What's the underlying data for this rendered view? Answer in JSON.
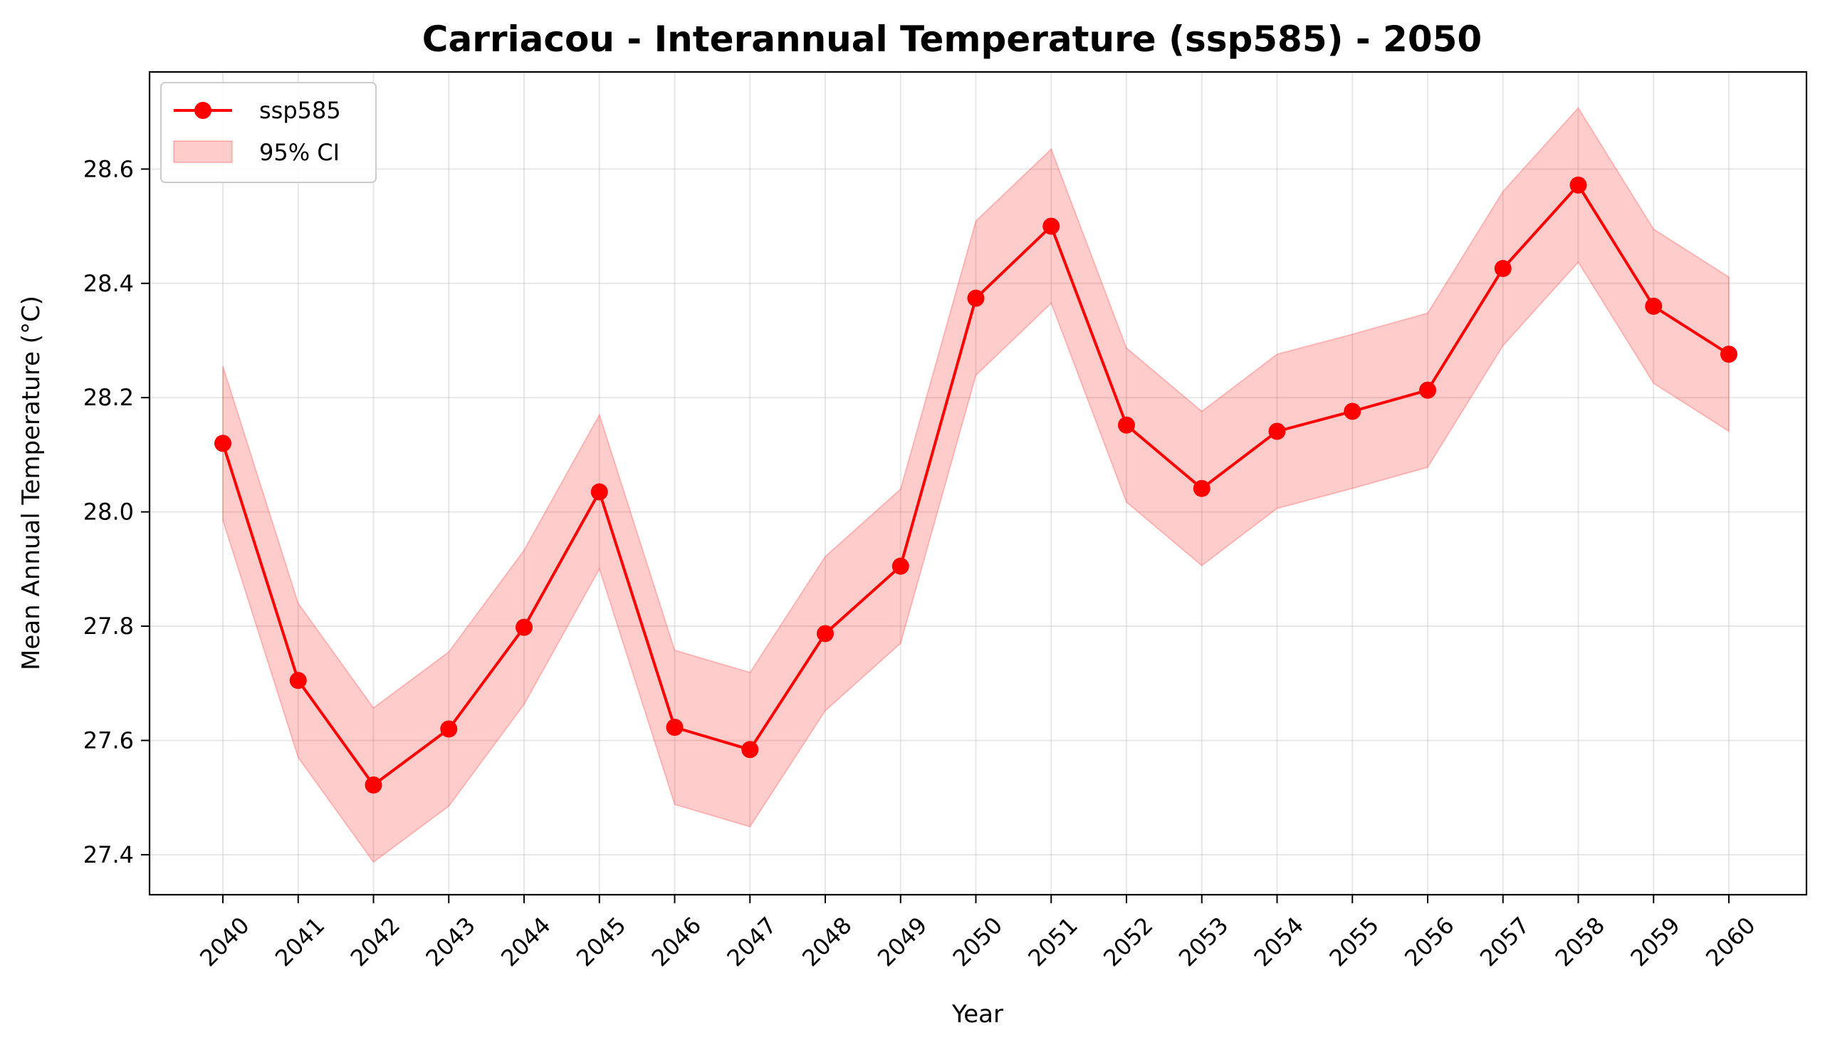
{
  "chart_data": {
    "type": "line",
    "title": "Carriacou - Interannual Temperature (ssp585) - 2050",
    "xlabel": "Year",
    "ylabel": "Mean Annual Temperature (°C)",
    "x": [
      "2040",
      "2041",
      "2042",
      "2043",
      "2044",
      "2045",
      "2046",
      "2047",
      "2048",
      "2049",
      "2050",
      "2051",
      "2052",
      "2053",
      "2054",
      "2055",
      "2056",
      "2057",
      "2058",
      "2059",
      "2060"
    ],
    "yticks": [
      "27.4",
      "27.6",
      "27.8",
      "28.0",
      "28.2",
      "28.4",
      "28.6"
    ],
    "ylim": [
      27.33,
      28.77
    ],
    "grid": true,
    "legend_position": "top-left",
    "series": [
      {
        "name": "ssp585",
        "color": "#ff0000",
        "marker": "circle",
        "values": [
          28.12,
          27.705,
          27.522,
          27.62,
          27.798,
          28.035,
          27.623,
          27.584,
          27.787,
          27.905,
          28.374,
          28.5,
          28.152,
          28.041,
          28.141,
          28.176,
          28.213,
          28.426,
          28.572,
          28.36,
          28.276
        ]
      }
    ],
    "band": {
      "name": "95% CI",
      "color": "#ff0000",
      "opacity": 0.2,
      "lower": [
        27.985,
        27.57,
        27.387,
        27.485,
        27.663,
        27.9,
        27.488,
        27.449,
        27.652,
        27.77,
        28.239,
        28.365,
        28.017,
        27.906,
        28.006,
        28.041,
        28.078,
        28.291,
        28.437,
        28.225,
        28.141
      ],
      "upper": [
        28.255,
        27.84,
        27.657,
        27.755,
        27.933,
        28.17,
        27.758,
        27.719,
        27.922,
        28.04,
        28.509,
        28.635,
        28.287,
        28.176,
        28.276,
        28.311,
        28.348,
        28.561,
        28.707,
        28.495,
        28.411
      ]
    }
  }
}
